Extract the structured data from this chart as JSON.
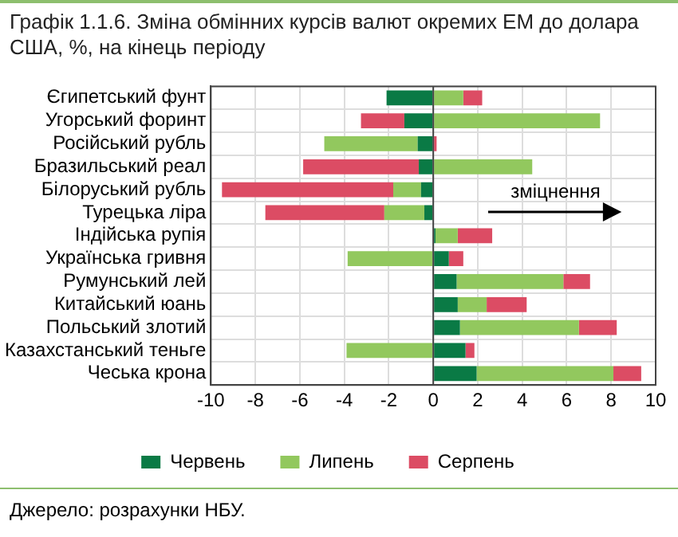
{
  "chart_data": {
    "type": "bar",
    "orientation": "horizontal",
    "stacked": true,
    "title": "Графік 1.1.6. Зміна обмінних курсів валют окремих ЕМ до долара США, %, на кінець періоду",
    "categories": [
      "Єгипетський фунт",
      "Угорський форинт",
      "Російський рубль",
      "Бразильський реал",
      "Білоруський рубль",
      "Турецька ліра",
      "Індійська рупія",
      "Українська гривня",
      "Румунський лей",
      "Китайський юань",
      "Польський злотий",
      "Казахстанський теньге",
      "Чеська крона"
    ],
    "series": [
      {
        "name": "Червень",
        "color": "#0a7a45",
        "values": [
          -2.1,
          -1.3,
          -0.7,
          -0.65,
          -0.55,
          -0.4,
          0.1,
          0.7,
          1.05,
          1.1,
          1.2,
          1.45,
          1.95
        ]
      },
      {
        "name": "Липень",
        "color": "#92c85e",
        "values": [
          1.35,
          7.5,
          -4.2,
          4.45,
          -1.25,
          -1.8,
          1.0,
          -3.85,
          4.8,
          1.3,
          5.35,
          -3.9,
          6.15
        ]
      },
      {
        "name": "Серпень",
        "color": "#dc4c64",
        "values": [
          0.85,
          -1.95,
          0.15,
          -5.2,
          -7.7,
          -5.35,
          1.55,
          0.65,
          1.2,
          1.8,
          1.7,
          0.4,
          1.25
        ]
      }
    ],
    "xlim": [
      -10,
      10
    ],
    "xticks": [
      -10,
      -8,
      -6,
      -4,
      -2,
      0,
      2,
      4,
      6,
      8,
      10
    ],
    "grid": true,
    "legend": "bottom",
    "annotations": [
      "зміцнення",
      "Джерело: розрахунки НБУ."
    ]
  }
}
